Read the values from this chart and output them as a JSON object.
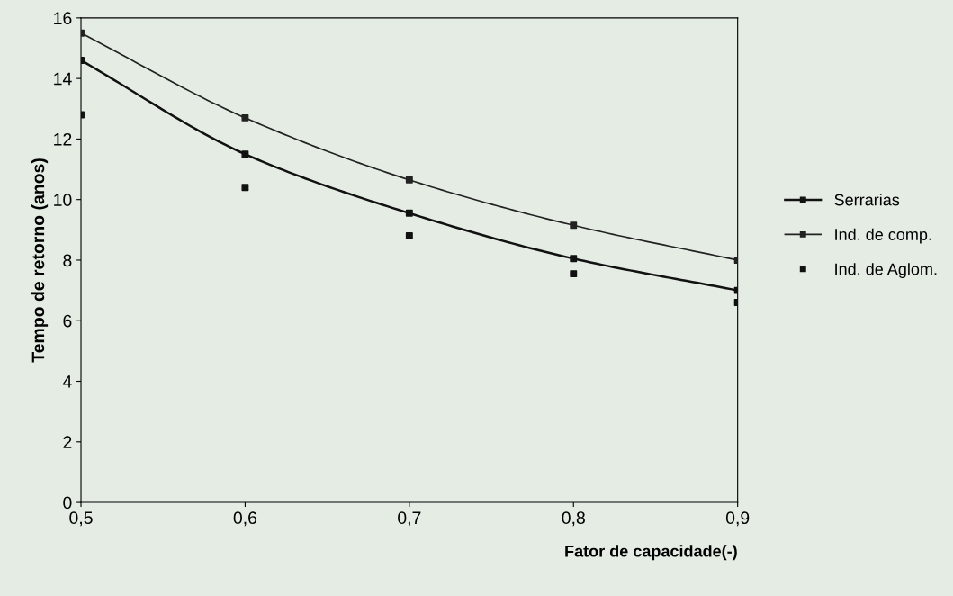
{
  "chart_data": {
    "type": "line",
    "xlabel": "Fator de capacidade(-)",
    "ylabel": "Tempo de retorno (anos)",
    "x": [
      0.5,
      0.6,
      0.7,
      0.8,
      0.9
    ],
    "xlim": [
      0.5,
      0.9
    ],
    "xticks": [
      {
        "value": 0.5,
        "label": "0,5"
      },
      {
        "value": 0.6,
        "label": "0,6"
      },
      {
        "value": 0.7,
        "label": "0,7"
      },
      {
        "value": 0.8,
        "label": "0,8"
      },
      {
        "value": 0.9,
        "label": "0,9"
      }
    ],
    "ylim": [
      0,
      16
    ],
    "yticks": [
      0,
      2,
      4,
      6,
      8,
      10,
      12,
      14,
      16
    ],
    "marker": "square",
    "grid": false,
    "legend": "right",
    "series": [
      {
        "name": "Serrarias",
        "color": "#111111",
        "values": [
          14.6,
          11.5,
          9.55,
          8.05,
          7.0
        ]
      },
      {
        "name": "Ind. de comp.",
        "color": "#222222",
        "values": [
          15.5,
          12.7,
          10.65,
          9.15,
          8.0
        ]
      },
      {
        "name": "Ind. de Aglom.",
        "type": "scatter",
        "color": "#111111",
        "values": [
          12.8,
          10.4,
          8.8,
          7.55,
          6.6
        ]
      }
    ]
  }
}
